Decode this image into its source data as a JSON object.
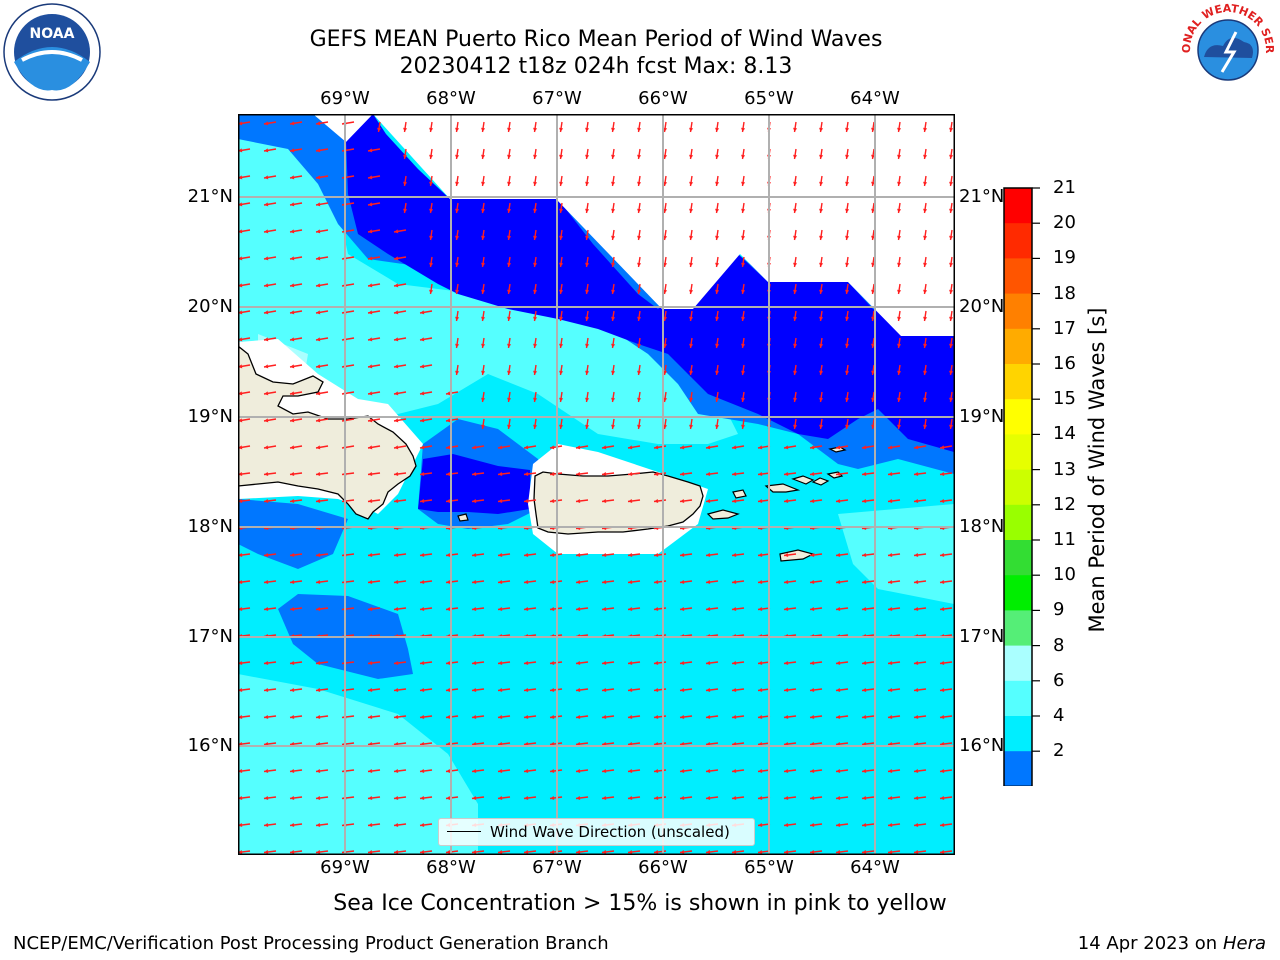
{
  "title_line1": "GEFS MEAN Puerto Rico Mean Period of Wind Waves",
  "title_line2": "20230412 t18z 024h fcst   Max: 8.13",
  "lon_ticks": [
    "69°W",
    "68°W",
    "67°W",
    "66°W",
    "65°W",
    "64°W"
  ],
  "lat_ticks": [
    "21°N",
    "20°N",
    "19°N",
    "18°N",
    "17°N",
    "16°N"
  ],
  "colorbar": {
    "label": "Mean Period of Wind Waves [s]",
    "ticks": [
      "21",
      "20",
      "19",
      "18",
      "17",
      "16",
      "15",
      "14",
      "13",
      "12",
      "11",
      "10",
      "9",
      "8",
      "6",
      "4",
      "2"
    ],
    "colors": [
      "#ff0000",
      "#ff2a00",
      "#ff5500",
      "#ff8000",
      "#ffab00",
      "#ffd400",
      "#ffff00",
      "#e6ff00",
      "#ccff00",
      "#99ff00",
      "#33dd33",
      "#00ee00",
      "#55ee77",
      "#aaffff",
      "#55ffff",
      "#00eeff",
      "#0077ff"
    ],
    "under_color": "#0000ff"
  },
  "legend_label": "Wind Wave Direction (unscaled)",
  "sea_ice_note": "Sea Ice Concentration > 15% is shown in pink to yellow",
  "footer_left": "NCEP/EMC/Verification Post Processing Product Generation Branch",
  "footer_right_date": "14 Apr 2023 on ",
  "footer_right_host": "Hera",
  "logo_left_text": "NOAA",
  "logo_right_text": "NATIONAL WEATHER SERVICE",
  "zone_colors": {
    "deep_blue": "#0000ff",
    "blue": "#0077ff",
    "cyan": "#00eeff",
    "light_cyan": "#55ffff",
    "pale_cyan": "#aaffff",
    "land": "#efeddc",
    "arrow": "#ff2020"
  }
}
